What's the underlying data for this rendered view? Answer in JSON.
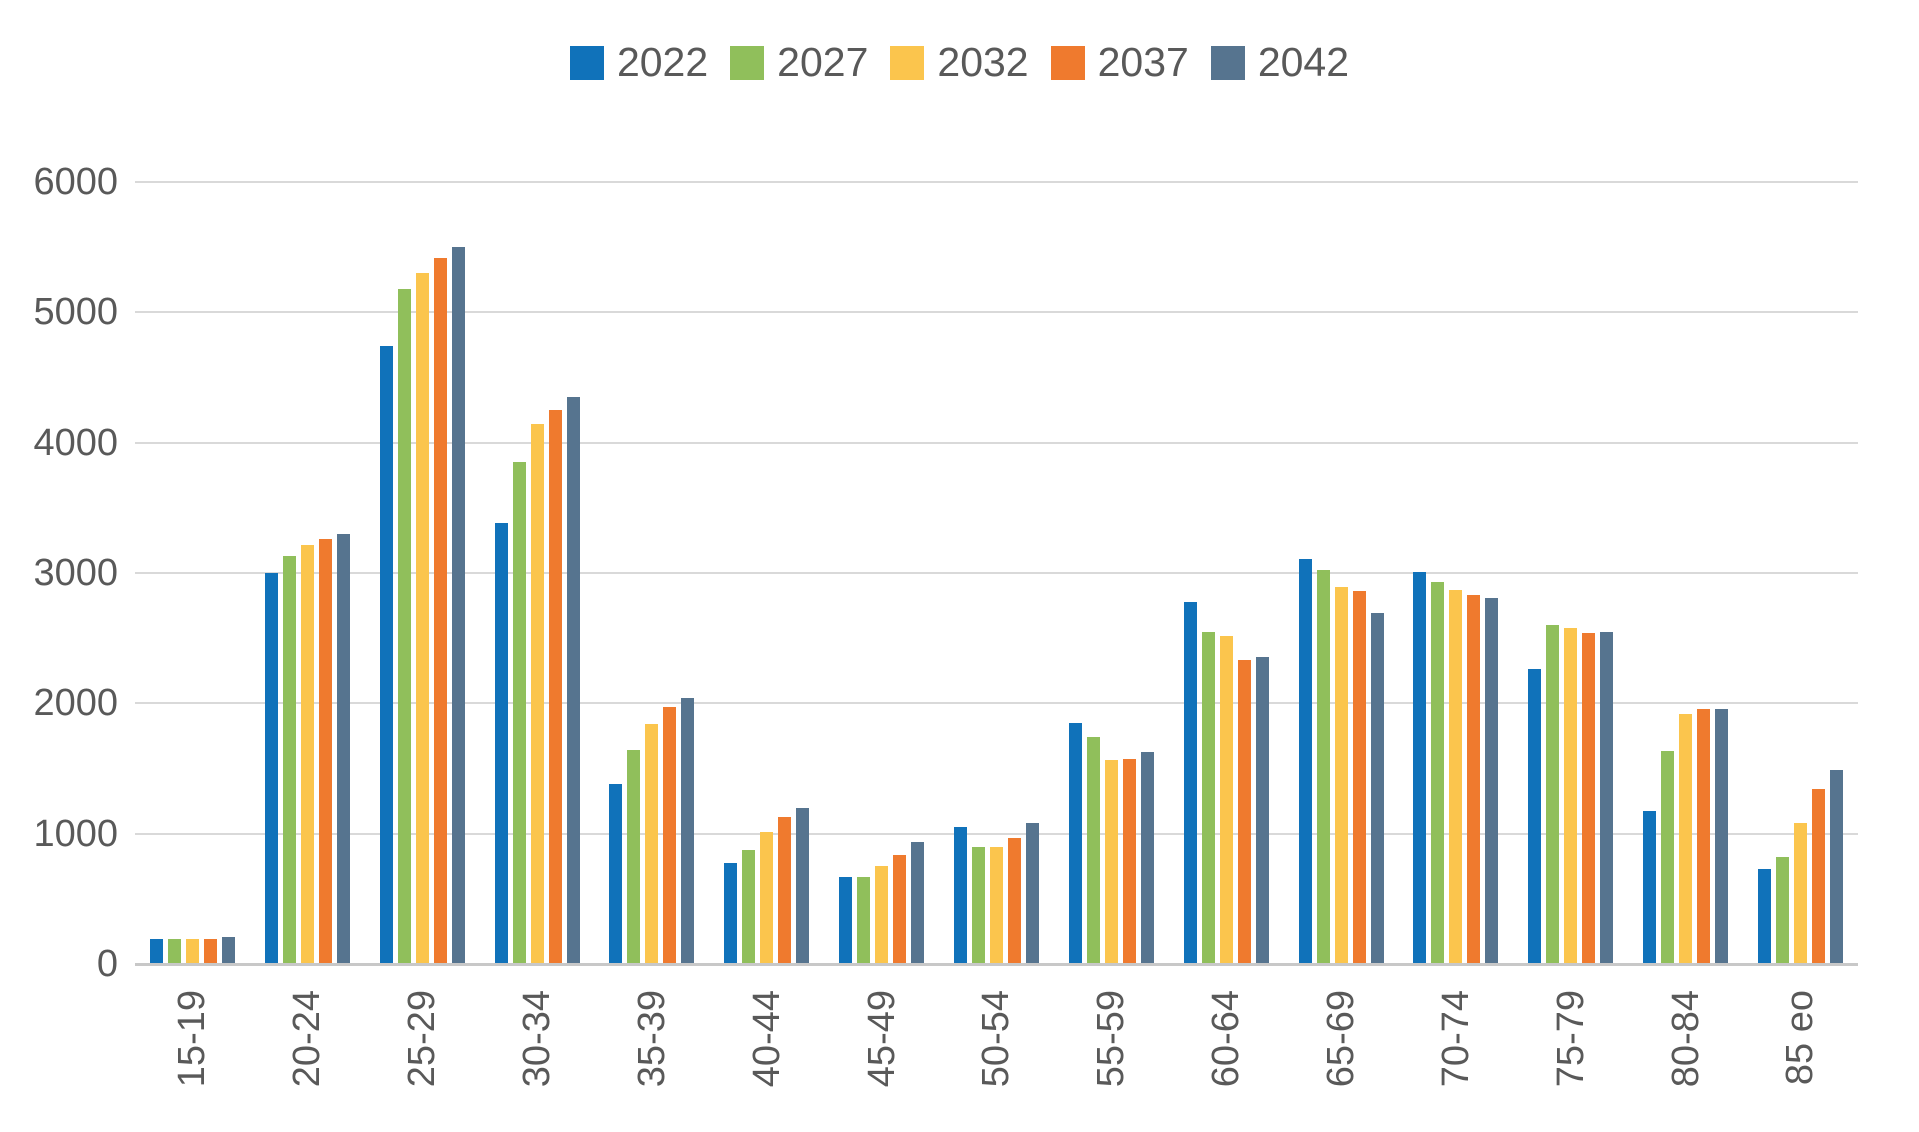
{
  "chart_data": {
    "type": "bar",
    "title": "",
    "legend_position": "top",
    "grid": true,
    "axis_text_color": "#595959",
    "gridline_color": "#D9D9D9",
    "baseline_color": "#C8C8C8",
    "ylim": [
      0,
      6000
    ],
    "ytick_step": 1000,
    "yticks": [
      0,
      1000,
      2000,
      3000,
      4000,
      5000,
      6000
    ],
    "categories": [
      "15-19",
      "20-24",
      "25-29",
      "30-34",
      "35-39",
      "40-44",
      "45-49",
      "50-54",
      "55-59",
      "60-64",
      "65-69",
      "70-74",
      "75-79",
      "80-84",
      "85 eo"
    ],
    "series": [
      {
        "name": "2022",
        "color": "#1072BA",
        "values": [
          195,
          3000,
          4740,
          3380,
          1385,
          775,
          670,
          1055,
          1850,
          2780,
          3110,
          3005,
          2265,
          1175,
          730
        ]
      },
      {
        "name": "2027",
        "color": "#90BF5B",
        "values": [
          190,
          3130,
          5180,
          3850,
          1645,
          875,
          665,
          895,
          1740,
          2550,
          3020,
          2930,
          2600,
          1635,
          820
        ]
      },
      {
        "name": "2032",
        "color": "#FBC54D",
        "values": [
          190,
          3215,
          5300,
          4140,
          1845,
          1010,
          750,
          900,
          1565,
          2520,
          2895,
          2870,
          2580,
          1920,
          1085
        ]
      },
      {
        "name": "2037",
        "color": "#EF7A2E",
        "values": [
          190,
          3260,
          5420,
          4250,
          1975,
          1125,
          840,
          965,
          1570,
          2330,
          2865,
          2835,
          2540,
          1960,
          1340
        ]
      },
      {
        "name": "2042",
        "color": "#56748F",
        "values": [
          205,
          3300,
          5500,
          4350,
          2040,
          1200,
          935,
          1080,
          1630,
          2355,
          2690,
          2805,
          2550,
          1955,
          1490
        ]
      }
    ]
  }
}
